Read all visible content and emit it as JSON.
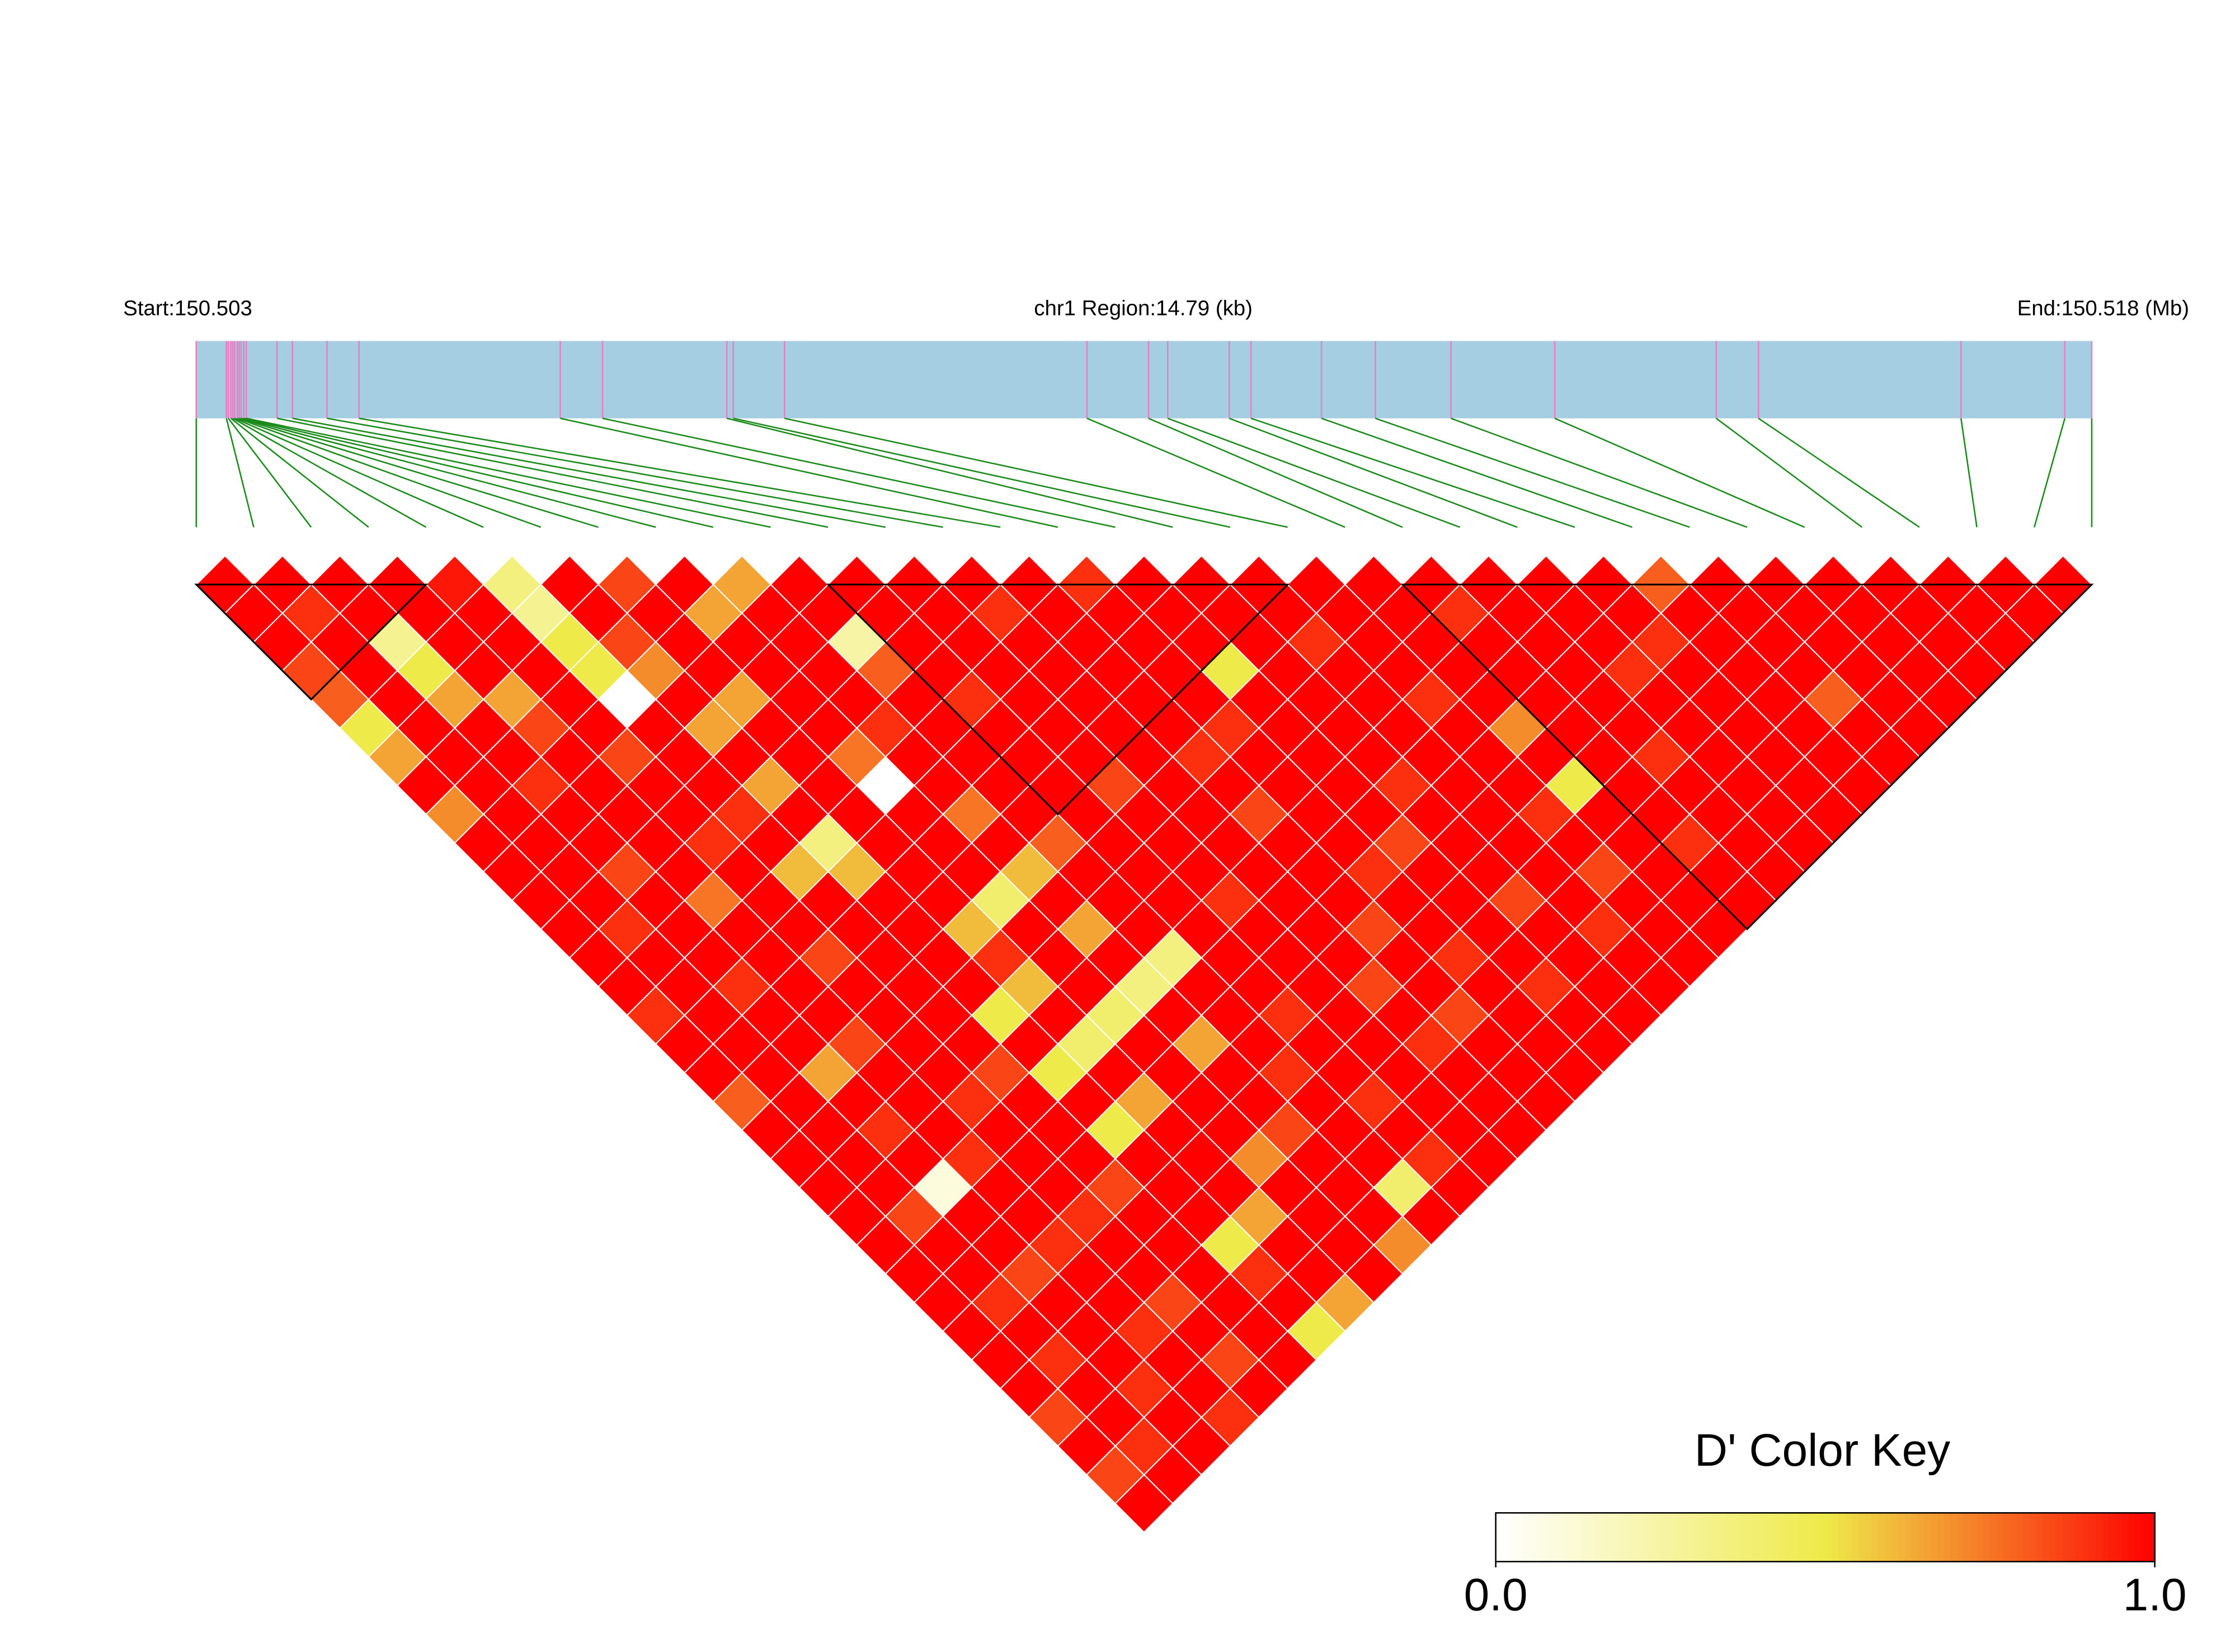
{
  "chart_data": {
    "type": "ldheatmap",
    "start_label": "Start:150.503",
    "region_label": "chr1 Region:14.79 (kb)",
    "end_label": "End:150.518 (Mb)",
    "key_title": "D' Color Key",
    "xlim": [
      0,
      14.79
    ],
    "snp_positions_kb": [
      0,
      0.235,
      0.25,
      0.27,
      0.285,
      0.3,
      0.32,
      0.335,
      0.35,
      0.37,
      0.39,
      0.63,
      0.75,
      1.02,
      1.27,
      2.84,
      3.17,
      4.14,
      4.19,
      4.59,
      6.95,
      7.43,
      7.58,
      8.06,
      8.23,
      8.78,
      9.2,
      9.79,
      10.6,
      11.86,
      12.19,
      13.77,
      14.58,
      14.79
    ],
    "blocks": [
      [
        0,
        4
      ],
      [
        11,
        19
      ],
      [
        21,
        33
      ]
    ],
    "key_lim": [
      0,
      1
    ],
    "key_ticks": [
      {
        "value": 0,
        "label": "0.0"
      },
      {
        "value": 1,
        "label": "1.0"
      }
    ],
    "key_colors": [
      "#ffffff",
      "#eeea4a",
      "#ff0000"
    ],
    "dprime_by_lag": [
      [
        1,
        1,
        1,
        1,
        0.95,
        0.35,
        1,
        0.85,
        1,
        0.65,
        1,
        1,
        1,
        1,
        1,
        0.9,
        1,
        1,
        1,
        1,
        1,
        1,
        1,
        1,
        1,
        0.8,
        1,
        1,
        1,
        1,
        1,
        1,
        1
      ],
      [
        1,
        0.9,
        1,
        1,
        1,
        0.3,
        1,
        1,
        0.65,
        1,
        1,
        1,
        1,
        0.9,
        1,
        1,
        1,
        1,
        1,
        1,
        1,
        0.9,
        1,
        1,
        1,
        1,
        1,
        1,
        1,
        1,
        1,
        1
      ],
      [
        1,
        1,
        0.3,
        1,
        1,
        0.5,
        0.85,
        1,
        1,
        1,
        0.25,
        1,
        1,
        1,
        1,
        1,
        1,
        1,
        0.9,
        1,
        1,
        1,
        1,
        1,
        0.9,
        1,
        1,
        1,
        1,
        1,
        1
      ],
      [
        0.85,
        1,
        0.5,
        1,
        1,
        0.5,
        0.7,
        1,
        1,
        1,
        0.8,
        1,
        1,
        1,
        1,
        1,
        0.5,
        1,
        1,
        1,
        1,
        1,
        1,
        0.9,
        1,
        1,
        1,
        1,
        1,
        1
      ],
      [
        0.8,
        1,
        0.65,
        0.65,
        1,
        0,
        1,
        0.65,
        1,
        1,
        1,
        0.9,
        1,
        1,
        1,
        1,
        1,
        1,
        1,
        0.9,
        1,
        1,
        1,
        1,
        1,
        1,
        0.8,
        1,
        1
      ],
      [
        0.5,
        1,
        1,
        0.85,
        1,
        1,
        0.65,
        1,
        1,
        0.9,
        1,
        1,
        1,
        1,
        1,
        0.9,
        1,
        1,
        1,
        1,
        0.7,
        1,
        1,
        1,
        1,
        1,
        1,
        1
      ],
      [
        0.65,
        1,
        1,
        1,
        0.85,
        1,
        1,
        1,
        0.75,
        1,
        1,
        1,
        1,
        1,
        0.9,
        1,
        1,
        1,
        1,
        1,
        1,
        1,
        0.9,
        1,
        1,
        1,
        1
      ],
      [
        1,
        1,
        0.9,
        1,
        1,
        1,
        0.65,
        1,
        0,
        1,
        1,
        1,
        0.85,
        1,
        1,
        1,
        1,
        0.9,
        1,
        1,
        0.5,
        1,
        1,
        1,
        1,
        1
      ],
      [
        0.7,
        1,
        1,
        1,
        1,
        0.9,
        1,
        1,
        1,
        0.75,
        1,
        1,
        1,
        1,
        0.85,
        1,
        1,
        1,
        1,
        0.9,
        1,
        1,
        1,
        1,
        1
      ],
      [
        1,
        1,
        1,
        1,
        0.9,
        1,
        0.35,
        1,
        1,
        1,
        0.8,
        1,
        1,
        1,
        1,
        1,
        0.85,
        1,
        1,
        1,
        1,
        0.9,
        1,
        1
      ],
      [
        1,
        1,
        0.85,
        1,
        1,
        0.6,
        0.6,
        1,
        1,
        0.6,
        1,
        1,
        1,
        1,
        1,
        0.9,
        1,
        1,
        1,
        0.85,
        1,
        1,
        1
      ],
      [
        1,
        1,
        1,
        0.75,
        1,
        1,
        1,
        1,
        0.4,
        1,
        1,
        1,
        0.9,
        1,
        1,
        1,
        1,
        0.85,
        1,
        1,
        1,
        1
      ],
      [
        1,
        0.9,
        1,
        1,
        1,
        1,
        1,
        0.6,
        1,
        0.65,
        1,
        1,
        1,
        1,
        0.85,
        1,
        1,
        1,
        0.9,
        1,
        1
      ],
      [
        1,
        1,
        1,
        1,
        0.85,
        1,
        1,
        0.9,
        1,
        1,
        0.35,
        1,
        1,
        1,
        1,
        0.9,
        1,
        1,
        1,
        1
      ],
      [
        1,
        1,
        0.9,
        1,
        1,
        1,
        1,
        0.6,
        1,
        0.35,
        1,
        1,
        1,
        0.85,
        1,
        1,
        0.9,
        1,
        1
      ],
      [
        0.9,
        1,
        1,
        1,
        1,
        1,
        0.5,
        1,
        0.4,
        1,
        1,
        0.9,
        1,
        1,
        0.85,
        1,
        1,
        1
      ],
      [
        1,
        1,
        1,
        0.85,
        1,
        1,
        1,
        0.4,
        1,
        0.65,
        1,
        1,
        1,
        0.9,
        1,
        1,
        1
      ],
      [
        1,
        1,
        0.65,
        1,
        1,
        0.85,
        0.5,
        1,
        1,
        1,
        0.9,
        1,
        1,
        1,
        1,
        1
      ],
      [
        0.8,
        1,
        1,
        1,
        0.9,
        1,
        1,
        0.65,
        1,
        1,
        1,
        0.9,
        1,
        1,
        1
      ],
      [
        1,
        1,
        0.9,
        1,
        1,
        1,
        0.5,
        1,
        1,
        0.85,
        1,
        1,
        1,
        1
      ],
      [
        1,
        1,
        1,
        0.9,
        1,
        1,
        1,
        1,
        0.7,
        1,
        1,
        0.9,
        1
      ],
      [
        1,
        1,
        0.1,
        1,
        1,
        0.85,
        1,
        1,
        1,
        1,
        0.4,
        1
      ],
      [
        1,
        0.85,
        1,
        1,
        0.9,
        1,
        1,
        0.65,
        1,
        1,
        1
      ],
      [
        1,
        1,
        1,
        0.9,
        1,
        1,
        0.5,
        1,
        1,
        0.7
      ],
      [
        1,
        1,
        0.85,
        1,
        1,
        1,
        0.9,
        1,
        1
      ],
      [
        1,
        0.9,
        1,
        1,
        0.85,
        1,
        1,
        0.65
      ],
      [
        1,
        1,
        1,
        0.9,
        1,
        1,
        0.5
      ],
      [
        1,
        0.9,
        1,
        1,
        0.85,
        1
      ],
      [
        1,
        1,
        0.9,
        1,
        1
      ],
      [
        0.85,
        1,
        1,
        0.9
      ],
      [
        1,
        0.9,
        1
      ],
      [
        0.85,
        1
      ],
      [
        1
      ]
    ]
  }
}
